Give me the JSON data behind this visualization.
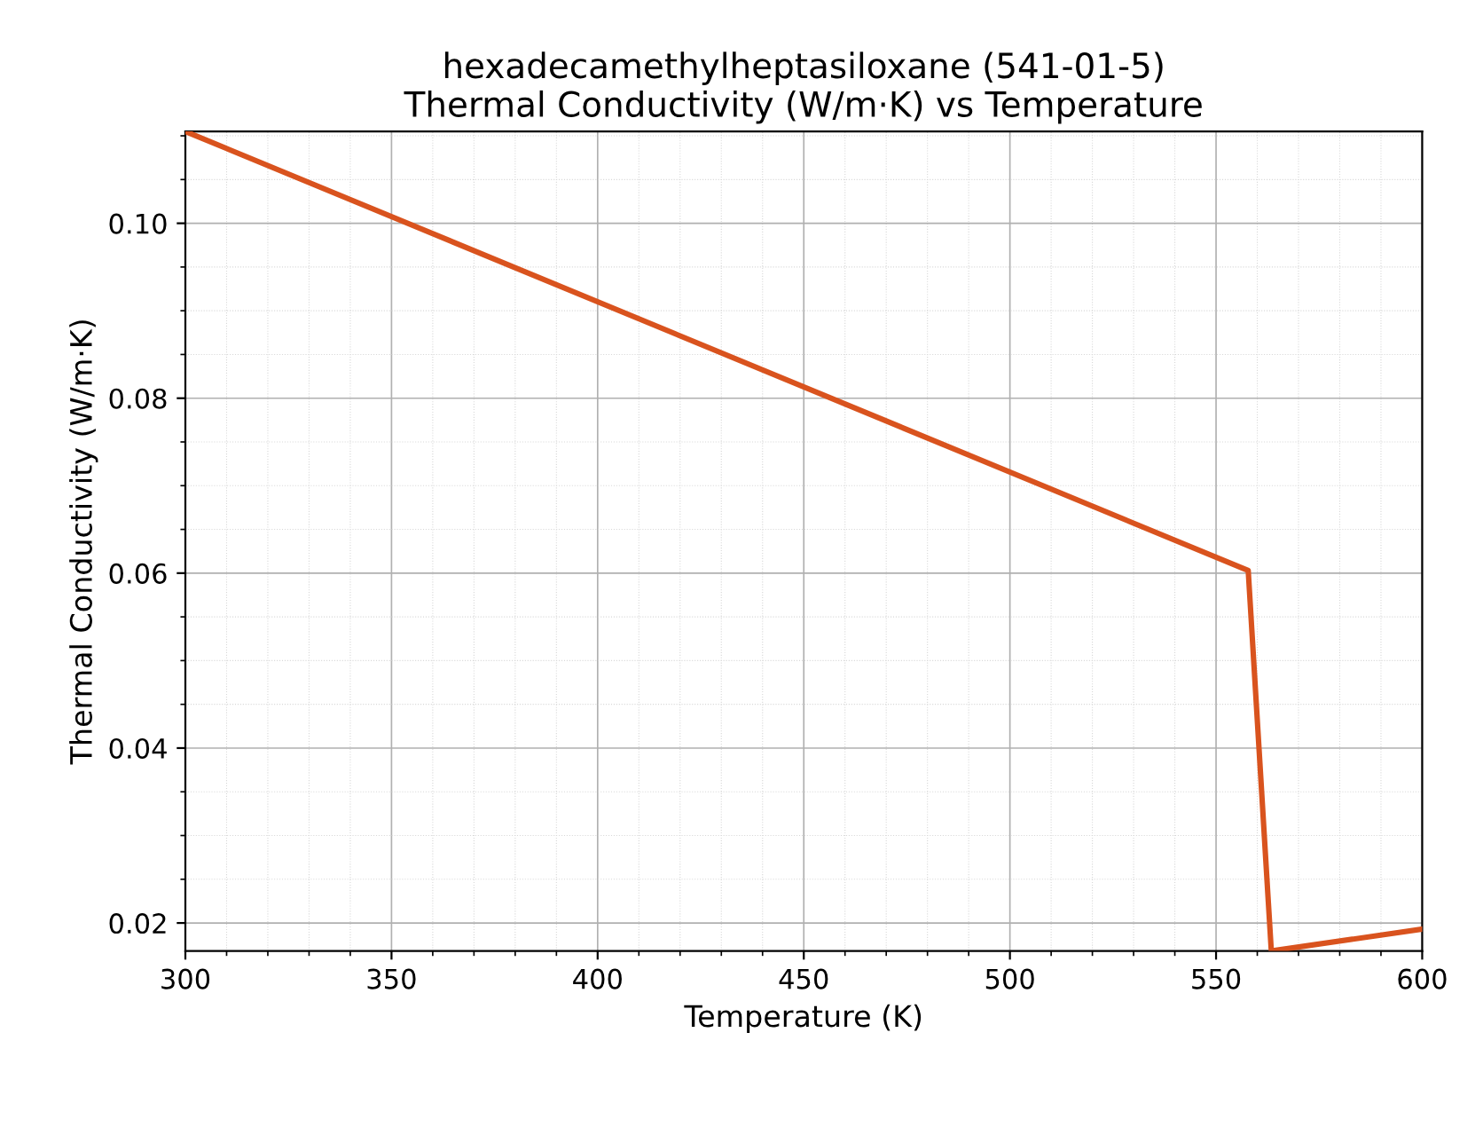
{
  "chart_data": {
    "type": "line",
    "title": "hexadecamethylheptasiloxane (541-01-5)\nThermal Conductivity (W/m·K) vs Temperature",
    "xlabel": "Temperature (K)",
    "ylabel": "Thermal Conductivity (W/m·K)",
    "series": [
      {
        "color": "#d9531e",
        "x": [
          300,
          557.8,
          563.4,
          600
        ],
        "values": [
          0.1105,
          0.0603,
          0.0168,
          0.0193
        ]
      }
    ],
    "xlim": [
      300,
      600
    ],
    "ylim": [
      0.0168,
      0.1105
    ],
    "xticks": [
      300,
      {
        "value": 310,
        "label": null
      },
      {
        "value": 320,
        "label": null
      },
      {
        "value": 330,
        "label": null
      },
      {
        "value": 340,
        "label": null
      },
      350,
      {
        "value": 360,
        "label": null
      },
      {
        "value": 370,
        "label": null
      },
      {
        "value": 380,
        "label": null
      },
      {
        "value": 390,
        "label": null
      },
      400,
      {
        "value": 410,
        "label": null
      },
      {
        "value": 420,
        "label": null
      },
      {
        "value": 430,
        "label": null
      },
      {
        "value": 440,
        "label": null
      },
      450,
      {
        "value": 460,
        "label": null
      },
      {
        "value": 470,
        "label": null
      },
      {
        "value": 480,
        "label": null
      },
      {
        "value": 490,
        "label": null
      },
      500,
      {
        "value": 510,
        "label": null
      },
      {
        "value": 520,
        "label": null
      },
      {
        "value": 530,
        "label": null
      },
      {
        "value": 540,
        "label": null
      },
      550,
      {
        "value": 560,
        "label": null
      },
      {
        "value": 570,
        "label": null
      },
      {
        "value": 580,
        "label": null
      },
      {
        "value": 590,
        "label": null
      },
      600
    ],
    "yticks": [
      {
        "value": 0.02,
        "label": "0.02"
      },
      {
        "value": 0.025,
        "label": null
      },
      {
        "value": 0.03,
        "label": null
      },
      {
        "value": 0.035,
        "label": null
      },
      {
        "value": 0.04,
        "label": "0.04"
      },
      {
        "value": 0.045,
        "label": null
      },
      {
        "value": 0.05,
        "label": null
      },
      {
        "value": 0.055,
        "label": null
      },
      {
        "value": 0.06,
        "label": "0.06"
      },
      {
        "value": 0.065,
        "label": null
      },
      {
        "value": 0.07,
        "label": null
      },
      {
        "value": 0.075,
        "label": null
      },
      {
        "value": 0.08,
        "label": "0.08"
      },
      {
        "value": 0.085,
        "label": null
      },
      {
        "value": 0.09,
        "label": null
      },
      {
        "value": 0.095,
        "label": null
      },
      {
        "value": 0.1,
        "label": "0.10"
      },
      {
        "value": 0.105,
        "label": null
      },
      {
        "value": 0.11,
        "label": null
      }
    ],
    "grid": true,
    "line_style": "solid",
    "marker": "none"
  }
}
